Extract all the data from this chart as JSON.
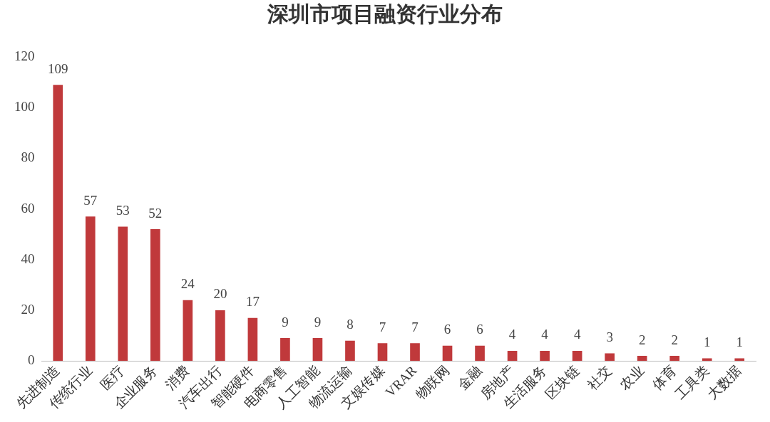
{
  "chart_data": {
    "type": "bar",
    "title": "深圳市项目融资行业分布",
    "categories": [
      "先进制造",
      "传统行业",
      "医疗",
      "企业服务",
      "消费",
      "汽车出行",
      "智能硬件",
      "电商零售",
      "人工智能",
      "物流运输",
      "文娱传媒",
      "VRAR",
      "物联网",
      "金融",
      "房地产",
      "生活服务",
      "区块链",
      "社交",
      "农业",
      "体育",
      "工具类",
      "大数据"
    ],
    "values": [
      109,
      57,
      53,
      52,
      24,
      20,
      17,
      9,
      9,
      8,
      7,
      7,
      6,
      6,
      4,
      4,
      4,
      3,
      2,
      2,
      1,
      1
    ],
    "color": "#c0393b",
    "ylim": [
      0,
      120
    ],
    "yticks": [
      0,
      20,
      40,
      60,
      80,
      100,
      120
    ],
    "grid": false,
    "legend": false,
    "data_labels": true
  }
}
